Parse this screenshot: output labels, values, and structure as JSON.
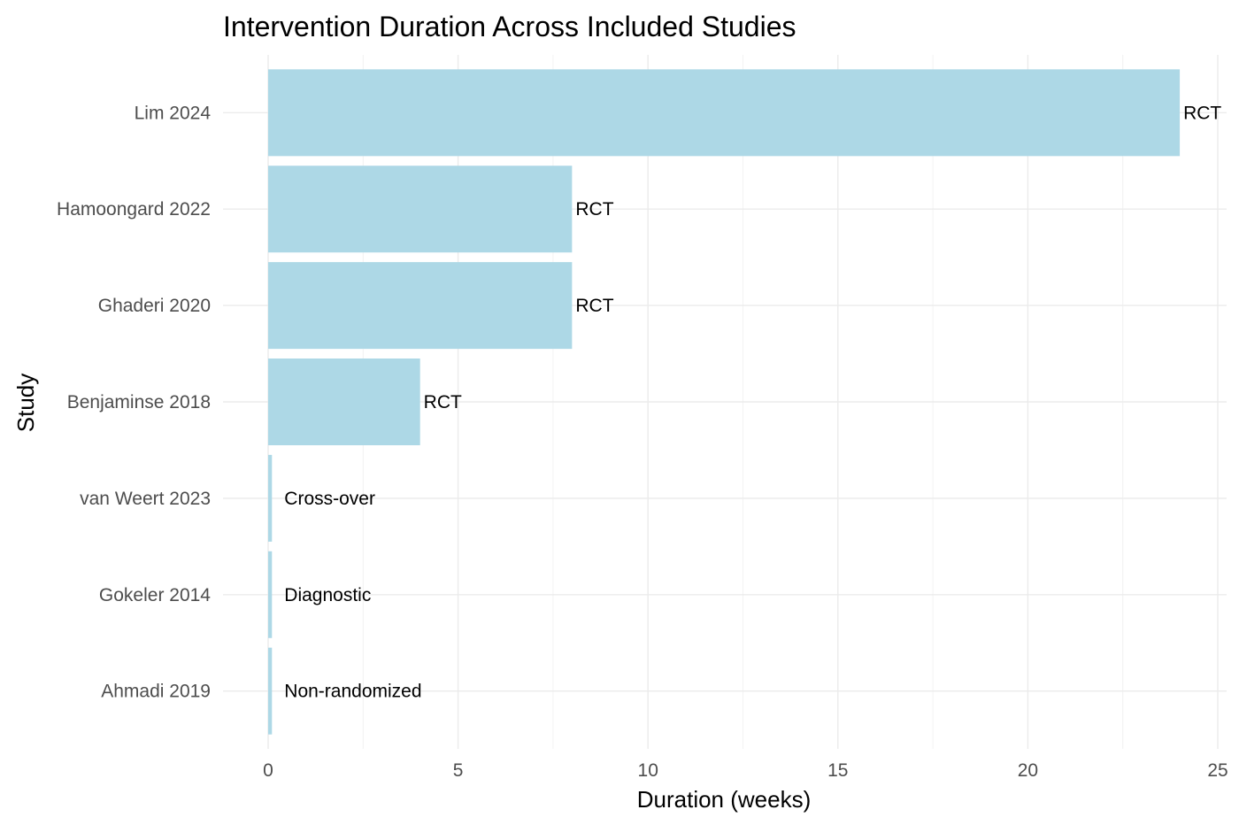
{
  "chart_data": {
    "type": "bar",
    "orientation": "horizontal",
    "title": "Intervention Duration Across Included Studies",
    "xlabel": "Duration (weeks)",
    "ylabel": "Study",
    "xlim": [
      0,
      25
    ],
    "x_ticks": [
      0,
      5,
      10,
      15,
      20,
      25
    ],
    "grid": true,
    "legend": "none",
    "bar_color": "#add8e6",
    "categories": [
      "Lim 2024",
      "Hamoongard 2022",
      "Ghaderi 2020",
      "Benjaminse 2018",
      "van Weert 2023",
      "Gokeler 2014",
      "Ahmadi 2019"
    ],
    "values": [
      24,
      8,
      8,
      4,
      0.1,
      0.1,
      0.1
    ],
    "bar_labels": [
      "RCT",
      "RCT",
      "RCT",
      "RCT",
      "Cross-over",
      "Diagnostic",
      "Non-randomized"
    ]
  }
}
